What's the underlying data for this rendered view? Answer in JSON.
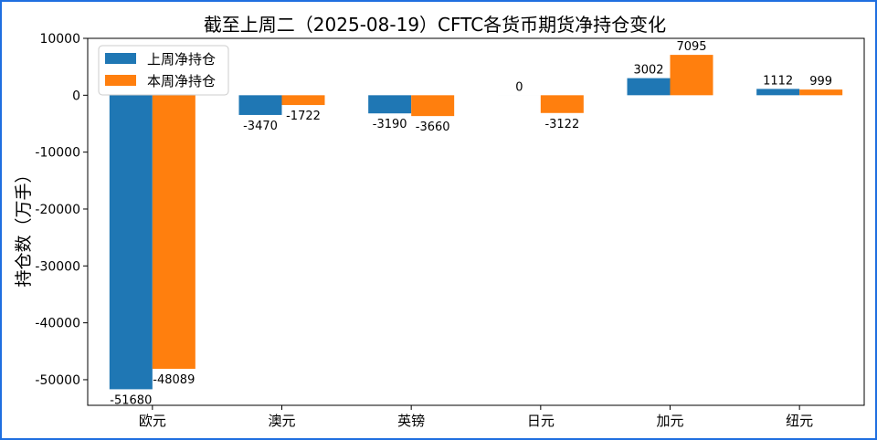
{
  "chart_data": {
    "type": "bar",
    "title": "截至上周二（2025-08-19）CFTC各货币期货净持仓变化",
    "xlabel": "",
    "ylabel": "持仓数（万手）",
    "categories": [
      "欧元",
      "澳元",
      "英镑",
      "日元",
      "加元",
      "纽元"
    ],
    "series": [
      {
        "name": "上周净持仓",
        "color": "#1f77b4",
        "values": [
          -51680,
          -3470,
          -3190,
          0,
          3002,
          1112
        ]
      },
      {
        "name": "本周净持仓",
        "color": "#ff7f0e",
        "values": [
          -48089,
          -1722,
          -3660,
          -3122,
          7095,
          999
        ]
      }
    ],
    "ylim": [
      -54500,
      10000
    ],
    "yticks": [
      10000,
      0,
      -10000,
      -20000,
      -30000,
      -40000,
      -50000
    ],
    "legend": "top-left",
    "grid": false,
    "data_labels": true
  }
}
